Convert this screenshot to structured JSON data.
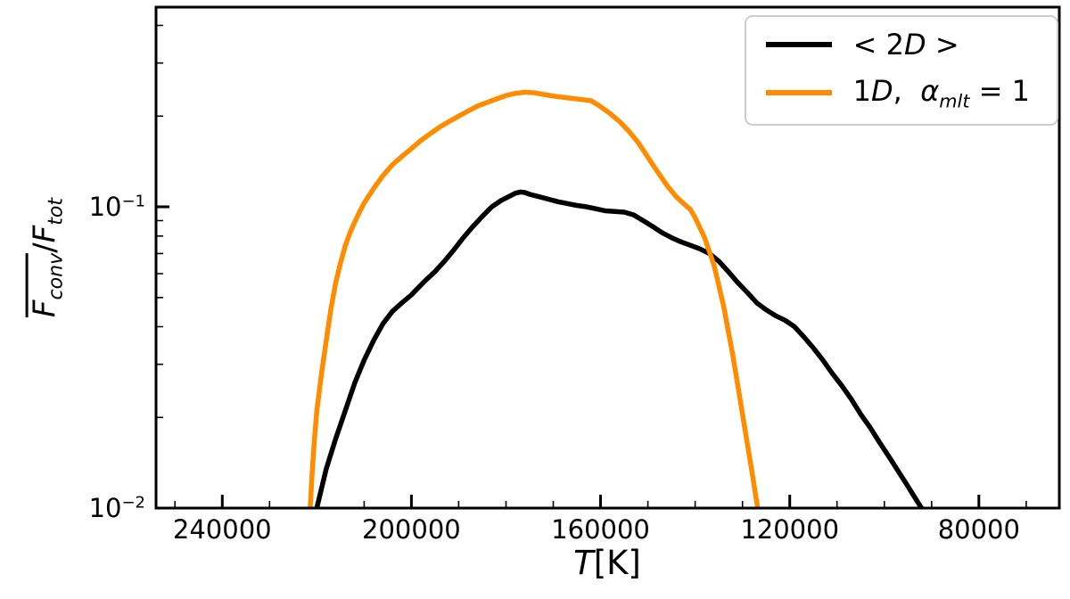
{
  "figure": {
    "background": "#ffffff"
  },
  "chart_data": {
    "type": "line",
    "title": "",
    "xlabel": {
      "var": "T",
      "unit": "[K]"
    },
    "ylabel": {
      "num_var": "F",
      "num_sub": "conv",
      "divider": "/",
      "den_var": "F",
      "den_sub": "tot"
    },
    "x_axis": {
      "min": 63000,
      "max": 254000,
      "inverted": true,
      "major_ticks": [
        240000,
        200000,
        160000,
        120000,
        80000
      ],
      "tick_labels": [
        "240000",
        "200000",
        "160000",
        "120000",
        "80000"
      ],
      "minor_step": 10000
    },
    "y_axis": {
      "scale": "log",
      "min": 0.01,
      "max": 0.46,
      "major_ticks": [
        0.1,
        0.01
      ],
      "major_tick_exponents": [
        -1,
        -2
      ]
    },
    "grid": false,
    "legend": {
      "position": "upper right",
      "items": [
        {
          "pre": "< 2",
          "var": "D",
          "mid": "",
          "alpha": "",
          "sub": "",
          "post": " >",
          "color": "#000000"
        },
        {
          "pre": "1",
          "var": "D",
          "mid": ",  ",
          "alpha": "α",
          "sub": "mlt",
          "post": " = 1",
          "color": "#ff8c00"
        }
      ]
    },
    "series": [
      {
        "name": "<2D>",
        "color": "#000000",
        "linewidth": 5.5,
        "x": [
          221000,
          220000,
          218000,
          216000,
          214000,
          212000,
          210000,
          208000,
          206000,
          204000,
          202000,
          200000,
          199000,
          197000,
          195000,
          193000,
          191000,
          189000,
          187000,
          185000,
          183000,
          181000,
          179000,
          178000,
          177000,
          176000,
          175000,
          173000,
          171000,
          169000,
          167000,
          165000,
          163000,
          161000,
          159000,
          157000,
          155000,
          153000,
          151000,
          149000,
          147000,
          145000,
          143000,
          141000,
          139000,
          137000,
          135000,
          133000,
          131000,
          129000,
          127000,
          125000,
          123000,
          121000,
          119000,
          117000,
          115000,
          113000,
          111000,
          109000,
          107000,
          105000,
          103000,
          101000,
          99000,
          97000,
          95000,
          93000,
          91000
        ],
        "y": [
          0.0085,
          0.01,
          0.0135,
          0.017,
          0.021,
          0.026,
          0.031,
          0.036,
          0.041,
          0.045,
          0.048,
          0.051,
          0.053,
          0.057,
          0.061,
          0.066,
          0.072,
          0.079,
          0.086,
          0.093,
          0.1,
          0.105,
          0.109,
          0.111,
          0.112,
          0.1115,
          0.11,
          0.108,
          0.106,
          0.104,
          0.1025,
          0.101,
          0.1,
          0.0985,
          0.097,
          0.0965,
          0.096,
          0.094,
          0.09,
          0.086,
          0.082,
          0.079,
          0.0765,
          0.0745,
          0.0725,
          0.07,
          0.066,
          0.061,
          0.056,
          0.052,
          0.048,
          0.0455,
          0.0435,
          0.042,
          0.04,
          0.037,
          0.034,
          0.031,
          0.028,
          0.0255,
          0.023,
          0.0205,
          0.0185,
          0.0165,
          0.0148,
          0.0132,
          0.0118,
          0.0105,
          0.0094
        ]
      },
      {
        "name": "1D, alpha_mlt = 1",
        "color": "#ff8c00",
        "linewidth": 5.5,
        "x": [
          221800,
          221400,
          221000,
          220500,
          220000,
          219000,
          218000,
          217000,
          216000,
          215000,
          214000,
          213000,
          212000,
          211000,
          210000,
          208000,
          206000,
          204000,
          202000,
          200000,
          198000,
          196000,
          194000,
          192000,
          190000,
          188000,
          186000,
          184000,
          182000,
          180000,
          178000,
          176000,
          174000,
          172000,
          170000,
          168000,
          166000,
          164000,
          162000,
          160000,
          158000,
          156000,
          154000,
          152000,
          150000,
          148000,
          146000,
          144000,
          142000,
          141000,
          140000,
          138000,
          136000,
          134000,
          132000,
          130000,
          128000,
          127000,
          126200
        ],
        "y": [
          0.008,
          0.01,
          0.013,
          0.017,
          0.021,
          0.028,
          0.036,
          0.046,
          0.056,
          0.065,
          0.074,
          0.082,
          0.089,
          0.096,
          0.103,
          0.115,
          0.127,
          0.138,
          0.147,
          0.156,
          0.166,
          0.175,
          0.184,
          0.192,
          0.2,
          0.208,
          0.216,
          0.222,
          0.228,
          0.234,
          0.238,
          0.24,
          0.239,
          0.236,
          0.233,
          0.231,
          0.229,
          0.227,
          0.225,
          0.215,
          0.204,
          0.192,
          0.178,
          0.163,
          0.146,
          0.131,
          0.118,
          0.108,
          0.101,
          0.098,
          0.092,
          0.079,
          0.064,
          0.047,
          0.032,
          0.0205,
          0.0132,
          0.0105,
          0.0088
        ]
      }
    ]
  }
}
